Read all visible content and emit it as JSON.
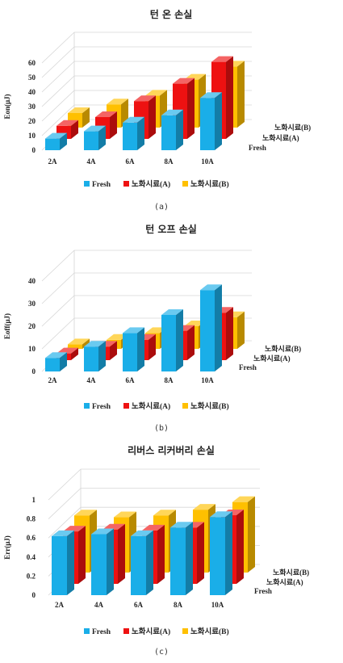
{
  "colors": {
    "Fresh": "#1AAEE8",
    "노화시료(A)": "#EE1111",
    "노화시료(B)": "#FFC000"
  },
  "chart_data": [
    {
      "type": "bar",
      "title": "턴 온 손실",
      "ylabel": "Eon(μJ)",
      "caption": "(a)",
      "ylim": [
        0,
        60
      ],
      "yticks": [
        "0",
        "10",
        "20",
        "30",
        "40",
        "50",
        "60"
      ],
      "categories": [
        "2A",
        "4A",
        "6A",
        "8A",
        "10A"
      ],
      "series": [
        {
          "name": "Fresh",
          "values": [
            8,
            13,
            19,
            24,
            36
          ]
        },
        {
          "name": "노화시료(A)",
          "values": [
            9,
            15,
            26,
            38,
            53
          ]
        },
        {
          "name": "노화시료(B)",
          "values": [
            10,
            16,
            22,
            33,
            42
          ]
        }
      ],
      "depth_labels": [
        "노화시료(B)",
        "노화시료(A)",
        "Fresh"
      ],
      "legend": [
        "Fresh",
        "노화시료(A)",
        "노화시료(B)"
      ]
    },
    {
      "type": "bar",
      "title": "턴 오프 손실",
      "ylabel": "Eoff(μJ)",
      "caption": "(b)",
      "ylim": [
        0,
        40
      ],
      "yticks": [
        "0",
        "10",
        "20",
        "30",
        "40"
      ],
      "categories": [
        "2A",
        "4A",
        "6A",
        "8A",
        "10A"
      ],
      "series": [
        {
          "name": "Fresh",
          "values": [
            6,
            11,
            17,
            25,
            36
          ]
        },
        {
          "name": "노화시료(A)",
          "values": [
            3,
            6,
            9,
            13,
            21
          ]
        },
        {
          "name": "노화시료(B)",
          "values": [
            2,
            4,
            7,
            10,
            14
          ]
        }
      ],
      "depth_labels": [
        "노화시료(B)",
        "노화시료(A)",
        "Fresh"
      ],
      "legend": [
        "Fresh",
        "노화시료(A)",
        "노화시료(B)"
      ]
    },
    {
      "type": "bar",
      "title": "리버스 리커버리 손실",
      "ylabel": "Err(μJ)",
      "caption": "(c)",
      "ylim": [
        0,
        1
      ],
      "yticks": [
        "0",
        "0.2",
        "0.4",
        "0.6",
        "0.8",
        "1"
      ],
      "categories": [
        "2A",
        "4A",
        "6A",
        "8A",
        "10A"
      ],
      "series": [
        {
          "name": "Fresh",
          "values": [
            0.62,
            0.64,
            0.62,
            0.71,
            0.82
          ]
        },
        {
          "name": "노화시료(A)",
          "values": [
            0.55,
            0.57,
            0.56,
            0.59,
            0.72
          ]
        },
        {
          "name": "노화시료(B)",
          "values": [
            0.6,
            0.58,
            0.6,
            0.66,
            0.74
          ]
        }
      ],
      "depth_labels": [
        "노화시료(B)",
        "노화시료(A)",
        "Fresh"
      ],
      "legend": [
        "Fresh",
        "노화시료(A)",
        "노화시료(B)"
      ]
    }
  ]
}
